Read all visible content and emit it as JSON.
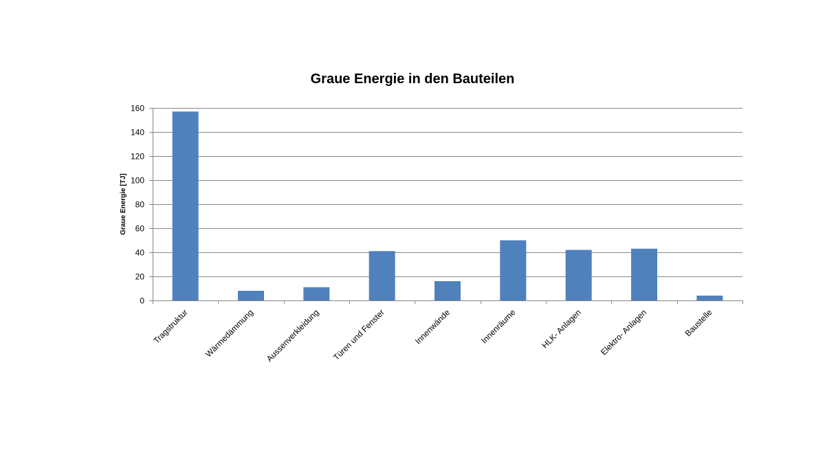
{
  "chart_data": {
    "type": "bar",
    "title": "Graue Energie in den Bauteilen",
    "xlabel": "",
    "ylabel": "Graue Energie [TJ]",
    "ylim": [
      0,
      160
    ],
    "yticks": [
      0,
      20,
      40,
      60,
      80,
      100,
      120,
      140,
      160
    ],
    "grid": true,
    "legend": "none",
    "bar_color": "#4f81bd",
    "categories": [
      "Tragstruktur",
      "Wärmedämmung",
      "Aussenverkleidung",
      "Türen und Fenster",
      "Innenwände",
      "Innenräume",
      "HLK- Anlagen",
      "Elektro- Anlagen",
      "Baustelle"
    ],
    "values": [
      157,
      8,
      11,
      41,
      16,
      50,
      42,
      43,
      4
    ]
  }
}
